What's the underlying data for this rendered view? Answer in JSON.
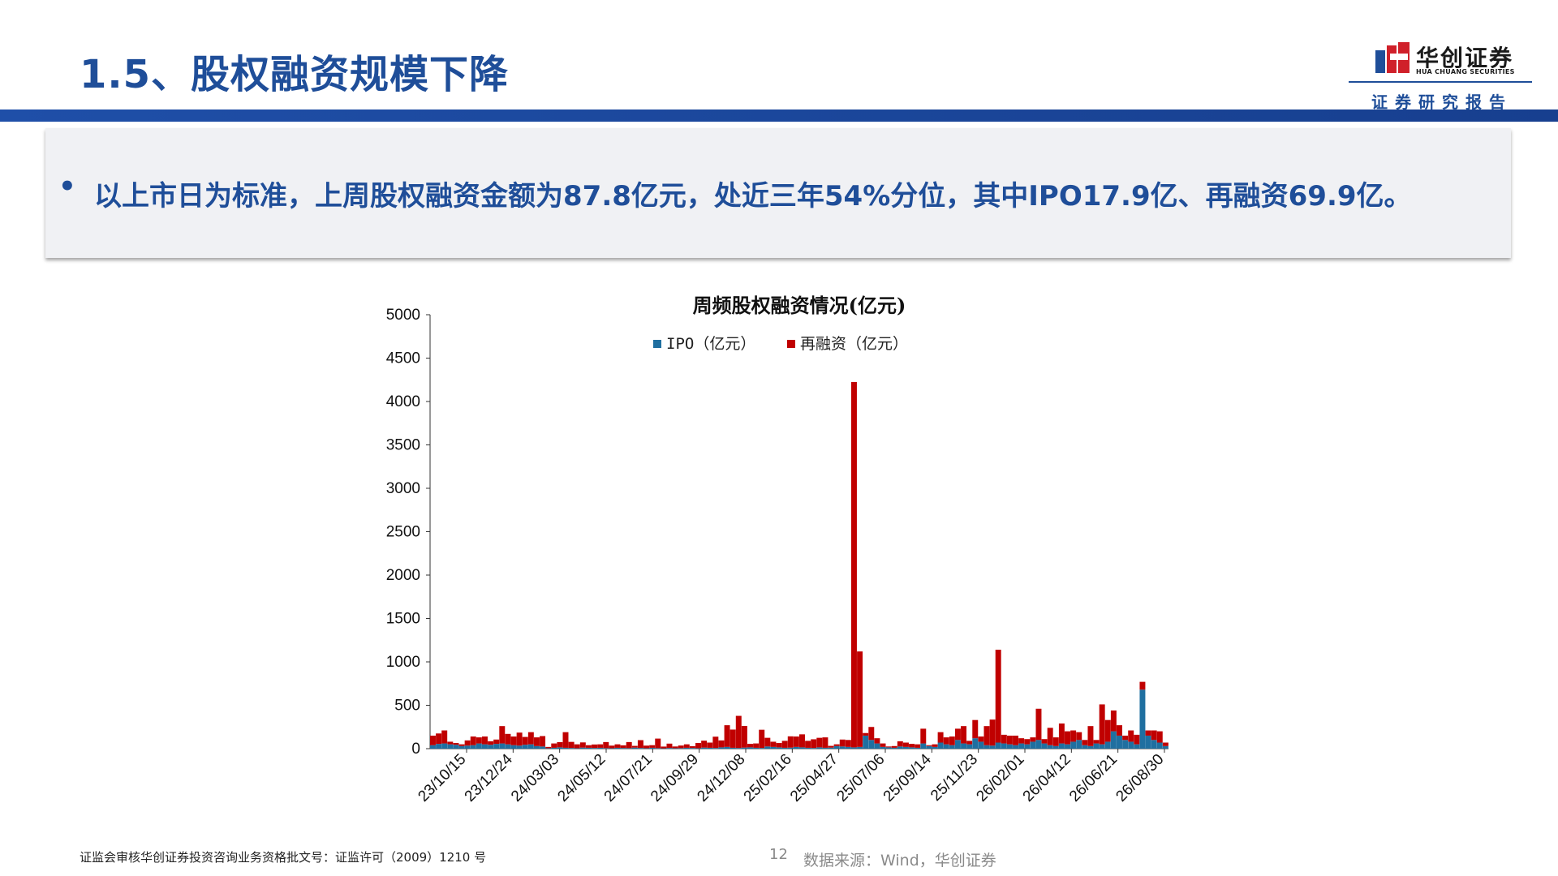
{
  "slide": {
    "title": "1.5、股权融资规模下降",
    "bullet": "以上市日为标准，上周股权融资金额为87.8亿元，处近三年54%分位，其中IPO17.9亿、再融资69.9亿。",
    "bullet_marker": "•"
  },
  "brand": {
    "name": "华创证券",
    "name_en": "HUA CHUANG SECURITIES",
    "report_label": "证券研究报告",
    "accent_color": "#1f4e99",
    "logo_red": "#d0202a"
  },
  "footer": {
    "cert": "证监会审核华创证券投资咨询业务资格批文号：证监许可（2009）1210 号",
    "page_number": "12",
    "source": "数据来源：Wind，华创证券"
  },
  "chart_data": {
    "type": "bar",
    "stacked": true,
    "title": "周频股权融资情况(亿元)",
    "ylim": [
      0,
      5000
    ],
    "yticks": [
      0,
      500,
      1000,
      1500,
      2000,
      2500,
      3000,
      3500,
      4000,
      4500,
      5000
    ],
    "x_tick_labels": [
      "23/10/15",
      "23/12/24",
      "24/03/03",
      "24/05/12",
      "24/07/21",
      "24/09/29",
      "24/12/08",
      "25/02/16",
      "25/04/27",
      "25/07/06",
      "25/09/14",
      "25/11/23",
      "26/02/01",
      "26/04/12",
      "26/06/21",
      "26/08/30"
    ],
    "legend_position": "top-center",
    "series": [
      {
        "name": "IPO（亿元）",
        "color": "#1f6fa0",
        "values": [
          40,
          55,
          60,
          50,
          45,
          30,
          35,
          40,
          60,
          50,
          45,
          55,
          60,
          50,
          40,
          35,
          45,
          50,
          30,
          25,
          5,
          10,
          15,
          10,
          8,
          5,
          12,
          10,
          8,
          10,
          6,
          5,
          10,
          8,
          6,
          12,
          8,
          5,
          10,
          6,
          4,
          8,
          5,
          6,
          10,
          8,
          5,
          12,
          10,
          8,
          15,
          20,
          10,
          8,
          12,
          15,
          10,
          8,
          25,
          20,
          15,
          10,
          12,
          20,
          15,
          10,
          8,
          15,
          10,
          12,
          30,
          25,
          20,
          15,
          20,
          150,
          100,
          60,
          20,
          15,
          10,
          25,
          20,
          15,
          10,
          60,
          30,
          20,
          70,
          50,
          40,
          100,
          60,
          50,
          120,
          80,
          40,
          35,
          70,
          60,
          50,
          40,
          60,
          50,
          80,
          100,
          60,
          40,
          30,
          60,
          50,
          80,
          100,
          40,
          30,
          60,
          50,
          80,
          200,
          150,
          100,
          80,
          50,
          680,
          150,
          100,
          70,
          30
        ]
      },
      {
        "name": "再融资（亿元）",
        "color": "#c00000",
        "values": [
          110,
          120,
          150,
          30,
          20,
          20,
          60,
          100,
          70,
          90,
          40,
          50,
          200,
          120,
          100,
          150,
          90,
          140,
          100,
          120,
          15,
          50,
          60,
          180,
          70,
          45,
          60,
          30,
          40,
          40,
          70,
          30,
          40,
          30,
          70,
          20,
          90,
          30,
          30,
          110,
          20,
          50,
          20,
          30,
          40,
          20,
          60,
          80,
          60,
          130,
          80,
          250,
          210,
          370,
          250,
          40,
          50,
          210,
          100,
          60,
          50,
          80,
          130,
          120,
          150,
          80,
          100,
          110,
          120,
          20,
          20,
          80,
          80,
          4210,
          1100,
          30,
          150,
          60,
          40,
          10,
          20,
          60,
          50,
          40,
          40,
          170,
          10,
          30,
          120,
          80,
          100,
          130,
          200,
          40,
          210,
          60,
          220,
          300,
          1070,
          100,
          100,
          110,
          60,
          60,
          50,
          360,
          50,
          200,
          100,
          230,
          150,
          130,
          90,
          60,
          230,
          40,
          460,
          250,
          240,
          120,
          50,
          130,
          110,
          90,
          60,
          110,
          130,
          40
        ]
      }
    ]
  }
}
